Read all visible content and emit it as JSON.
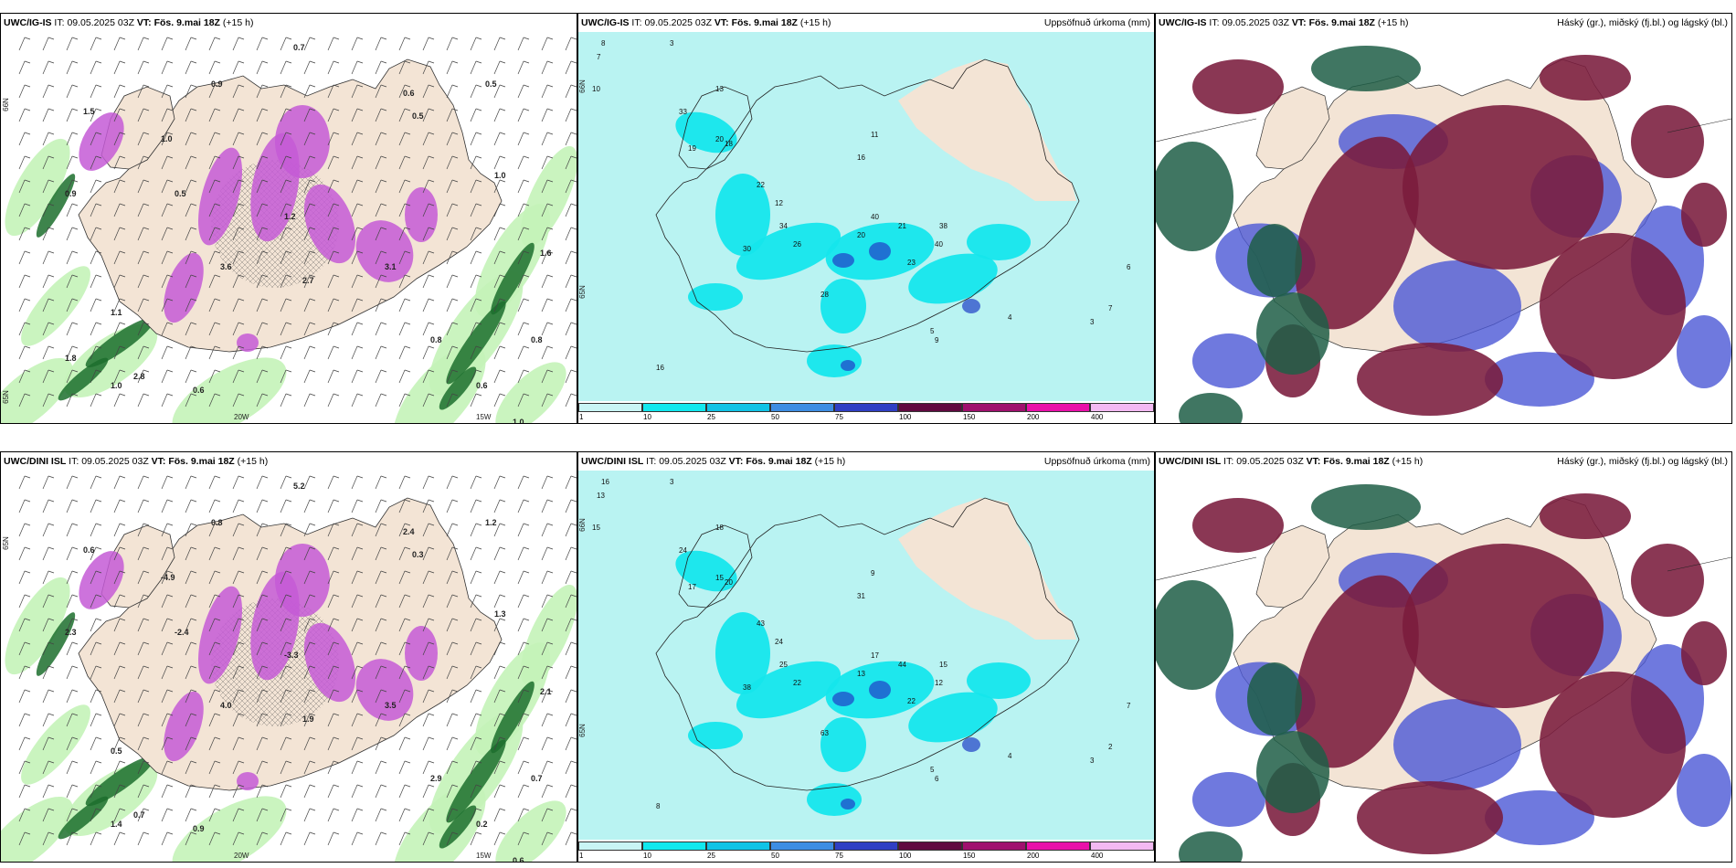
{
  "colors": {
    "land": "#f3e4d5",
    "sea_precip": "#b9f3f2",
    "precip_mid": "#15e6ec",
    "wind_green_light": "#c4f3b8",
    "wind_green_dark": "#1c6f2d",
    "snow_purple": "#c45bd6",
    "cloud_high": "#1f5e47",
    "cloud_mid": "#7a1b3c",
    "cloud_low": "#4b57d6"
  },
  "panels": [
    {
      "model": "UWC/IG-IS",
      "it_label": "IT:",
      "it_value": "09.05.2025 03Z",
      "vt_label": "VT:",
      "vt_value": "Fös. 9.mai 18Z",
      "lead": "(+15 h)",
      "right_title": "",
      "lon_labels": [
        "20W",
        "15W"
      ],
      "lat_labels": [
        "66N",
        "65N"
      ],
      "values": [
        "0.7",
        "0.6",
        "0.5",
        "0.9",
        "1.0",
        "0.5",
        "1.2",
        "1.0",
        "1.6",
        "3.1",
        "2.7",
        "3.6",
        "0.8",
        "1.0",
        "0.8",
        "0.6",
        "1.1",
        "1.5",
        "0.5",
        "0.9",
        "0.6",
        "1.0",
        "2.8",
        "1.8"
      ]
    },
    {
      "model": "UWC/IG-IS",
      "it_label": "IT:",
      "it_value": "09.05.2025 03Z",
      "vt_label": "VT:",
      "vt_value": "Fös. 9.mai 18Z",
      "lead": "(+15 h)",
      "right_title": "Uppsöfnuð úrkoma (mm)",
      "lat_labels": [
        "66N",
        "65N"
      ],
      "values": [
        "8",
        "7",
        "3",
        "10",
        "13",
        "33",
        "19",
        "20",
        "18",
        "11",
        "16",
        "40",
        "20",
        "22",
        "30",
        "26",
        "34",
        "12",
        "21",
        "23",
        "28",
        "40",
        "38",
        "16",
        "9",
        "5",
        "4",
        "3",
        "7",
        "6"
      ],
      "colorbar": {
        "ticks": [
          "1",
          "10",
          "25",
          "50",
          "75",
          "100",
          "150",
          "200",
          "400"
        ],
        "colors": [
          "#c9f5f5",
          "#11e8ee",
          "#10c3e6",
          "#3d8de3",
          "#2f3fc4",
          "#610a40",
          "#a0106e",
          "#e910a9",
          "#f3b9f2"
        ]
      }
    },
    {
      "model": "UWC/IG-IS",
      "it_label": "IT:",
      "it_value": "09.05.2025 03Z",
      "vt_label": "VT:",
      "vt_value": "Fös. 9.mai 18Z",
      "lead": "(+15 h)",
      "right_title": "Háský (gr.), miðský (fj.bl.) og lágský (bl.)"
    },
    {
      "model": "UWC/DINI ISL",
      "it_label": "IT:",
      "it_value": "09.05.2025 03Z",
      "vt_label": "VT:",
      "vt_value": "Fös. 9.mai 18Z",
      "lead": "(+15 h)",
      "right_title": "",
      "lon_labels": [
        "20W",
        "15W"
      ],
      "lat_labels": [
        "65N"
      ],
      "values": [
        "5.2",
        "2.4",
        "0.3",
        "0.8",
        "-4.9",
        "-2.4",
        "-3.3",
        "1.3",
        "2.1",
        "3.5",
        "1.9",
        "4.0",
        "2.9",
        "1.4",
        "0.7",
        "0.9",
        "0.5",
        "0.6",
        "1.2",
        "2.3",
        "0.2",
        "0.6",
        "0.7"
      ]
    },
    {
      "model": "UWC/DINI ISL",
      "it_label": "IT:",
      "it_value": "09.05.2025 03Z",
      "vt_label": "VT:",
      "vt_value": "Fös. 9.mai 18Z",
      "lead": "(+15 h)",
      "right_title": "Uppsöfnuð úrkoma (mm)",
      "lat_labels": [
        "66N",
        "65N"
      ],
      "values": [
        "16",
        "13",
        "3",
        "15",
        "18",
        "24",
        "17",
        "15",
        "20",
        "9",
        "31",
        "17",
        "13",
        "43",
        "38",
        "22",
        "25",
        "24",
        "44",
        "22",
        "63",
        "12",
        "15",
        "8",
        "6",
        "5",
        "4",
        "3",
        "2",
        "7"
      ],
      "colorbar": {
        "ticks": [
          "1",
          "10",
          "25",
          "50",
          "75",
          "100",
          "150",
          "200",
          "400"
        ],
        "colors": [
          "#c9f5f5",
          "#11e8ee",
          "#10c3e6",
          "#3d8de3",
          "#2f3fc4",
          "#610a40",
          "#a0106e",
          "#e910a9",
          "#f3b9f2"
        ]
      }
    },
    {
      "model": "UWC/DINI ISL",
      "it_label": "IT:",
      "it_value": "09.05.2025 03Z",
      "vt_label": "VT:",
      "vt_value": "Fös. 9.mai 18Z",
      "lead": "(+15 h)",
      "right_title": "Háský (gr.), miðský (fj.bl.) og lágský (bl.)"
    }
  ]
}
